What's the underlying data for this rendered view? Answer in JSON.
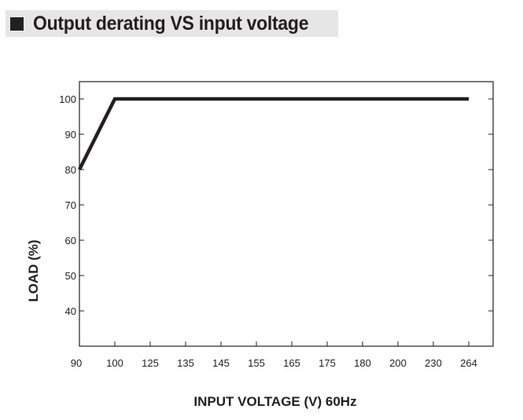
{
  "header": {
    "title": "Output derating VS input voltage"
  },
  "chart_data": {
    "type": "line",
    "title": "Output derating VS input voltage",
    "xlabel": "INPUT VOLTAGE (V) 60Hz",
    "ylabel": "LOAD (%)",
    "x_ticks": [
      "90",
      "100",
      "125",
      "135",
      "145",
      "155",
      "165",
      "175",
      "180",
      "200",
      "230",
      "264"
    ],
    "y_ticks": [
      40,
      50,
      60,
      70,
      80,
      90,
      100
    ],
    "ylim": [
      30,
      100
    ],
    "grid": false,
    "colors": {
      "line": "#231f20",
      "text": "#231f20",
      "title_bg": "#e6e6e6"
    },
    "series": [
      {
        "x": [
          "90",
          "100",
          "264"
        ],
        "values": [
          80,
          100,
          100
        ]
      }
    ]
  }
}
